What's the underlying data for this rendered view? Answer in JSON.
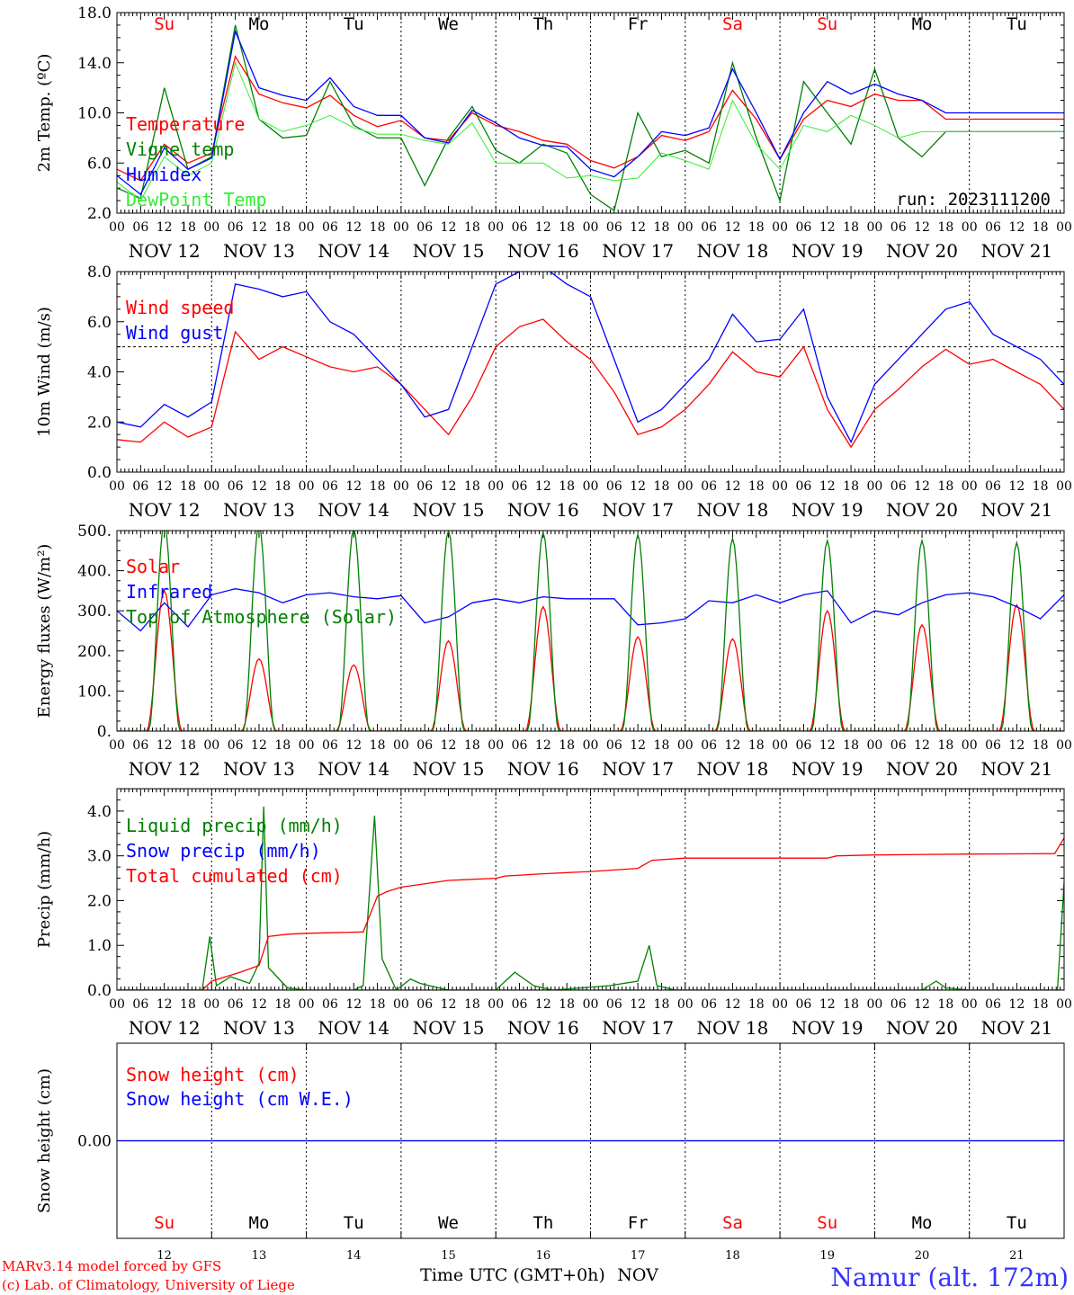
{
  "colors": {
    "red": "#ff0000",
    "green": "#008000",
    "blue": "#0000ff",
    "lightgreen": "#33ee33",
    "purple": "#800080",
    "location_blue": "#3333ff"
  },
  "x_axis": {
    "hour_labels": [
      "00",
      "06",
      "12",
      "18"
    ],
    "final_label": "00",
    "date_labels": [
      "NOV 12",
      "NOV 13",
      "NOV 14",
      "NOV 15",
      "NOV 16",
      "NOV 17",
      "NOV 18",
      "NOV 19",
      "NOV 20",
      "NOV 21"
    ],
    "weekdays": [
      "Su",
      "Mo",
      "Tu",
      "We",
      "Th",
      "Fr",
      "Sa",
      "Su",
      "Mo",
      "Tu"
    ],
    "weekday_colors": [
      "red",
      "black",
      "black",
      "black",
      "black",
      "black",
      "red",
      "red",
      "black",
      "black"
    ],
    "day_numbers": [
      "12",
      "13",
      "14",
      "15",
      "16",
      "17",
      "18",
      "19",
      "20",
      "21"
    ],
    "axis_title": "Time UTC (GMT+0h)",
    "month": "NOV"
  },
  "footer": {
    "credit_1": "MARv3.14 model forced by GFS",
    "credit_2": "(c) Lab. of Climatology, University of Liege",
    "location": "Namur (alt. 172m)"
  },
  "chart_data": [
    {
      "type": "line",
      "ylabel": "2m Temp. (ºC)",
      "ylim": [
        2,
        18
      ],
      "yticks": [
        "2.0",
        "6.0",
        "10.0",
        "14.0",
        "18.0"
      ],
      "ytick_values": [
        2,
        6,
        10,
        14,
        18
      ],
      "annotation": "run: 2023111200",
      "x_days": [
        0,
        10
      ],
      "series": [
        {
          "name": "Temperature",
          "color": "red",
          "x": [
            0,
            0.25,
            0.5,
            0.75,
            1,
            1.25,
            1.5,
            1.75,
            2,
            2.25,
            2.5,
            2.75,
            3,
            3.25,
            3.5,
            3.75,
            4,
            4.25,
            4.5,
            4.75,
            5,
            5.25,
            5.5,
            5.75,
            6,
            6.25,
            6.5,
            6.75,
            7,
            7.25,
            7.5,
            7.75,
            8,
            8.25,
            8.5,
            8.75,
            9,
            9.25,
            9.5,
            9.75,
            10
          ],
          "y": [
            5.5,
            4.6,
            7.5,
            6.0,
            6.8,
            14.5,
            11.5,
            10.8,
            10.4,
            11.4,
            9.8,
            8.9,
            9.4,
            8.0,
            7.8,
            10.0,
            9.0,
            8.5,
            7.8,
            7.5,
            6.2,
            5.6,
            6.5,
            8.2,
            7.8,
            8.5,
            11.8,
            9.5,
            6.3,
            9.5,
            11.0,
            10.5,
            11.5,
            11.0,
            11.0,
            9.5,
            9.5,
            9.5,
            9.5,
            9.5,
            9.5
          ]
        },
        {
          "name": "Vigne temp",
          "color": "green",
          "x": [
            0,
            0.25,
            0.5,
            0.75,
            1,
            1.25,
            1.5,
            1.75,
            2,
            2.25,
            2.5,
            2.75,
            3,
            3.25,
            3.5,
            3.75,
            4,
            4.25,
            4.5,
            4.75,
            5,
            5.25,
            5.5,
            5.75,
            6,
            6.25,
            6.5,
            6.75,
            7,
            7.25,
            7.5,
            7.75,
            8,
            8.25,
            8.5,
            8.75,
            9,
            9.25,
            9.5,
            9.75,
            10
          ],
          "y": [
            4.0,
            3.2,
            12.0,
            5.5,
            6.5,
            17.0,
            9.5,
            8.0,
            8.2,
            12.5,
            9.0,
            8.0,
            8.0,
            4.2,
            8.0,
            10.5,
            7.0,
            6.0,
            7.5,
            6.8,
            3.5,
            2.2,
            10.0,
            6.5,
            7.0,
            6.0,
            14.0,
            8.0,
            3.0,
            12.5,
            10.0,
            7.5,
            13.5,
            8.0,
            6.5,
            8.5,
            8.5,
            8.5,
            8.5,
            8.5,
            8.5
          ]
        },
        {
          "name": "Humidex",
          "color": "blue",
          "x": [
            0,
            0.25,
            0.5,
            0.75,
            1,
            1.25,
            1.5,
            1.75,
            2,
            2.25,
            2.5,
            2.75,
            3,
            3.25,
            3.5,
            3.75,
            4,
            4.25,
            4.5,
            4.75,
            5,
            5.25,
            5.5,
            5.75,
            6,
            6.25,
            6.5,
            6.75,
            7,
            7.25,
            7.5,
            7.75,
            8,
            8.25,
            8.5,
            8.75,
            9,
            9.25,
            9.5,
            9.75,
            10
          ],
          "y": [
            5.0,
            3.5,
            7.2,
            5.5,
            6.4,
            16.5,
            12.0,
            11.4,
            11.0,
            12.8,
            10.5,
            9.8,
            9.8,
            8.0,
            7.6,
            10.2,
            9.2,
            8.0,
            7.4,
            7.3,
            5.5,
            4.9,
            6.5,
            8.5,
            8.2,
            8.8,
            13.5,
            10.0,
            6.3,
            10.0,
            12.5,
            11.5,
            12.3,
            11.5,
            11.0,
            10.0,
            10.0,
            10.0,
            10.0,
            10.0,
            10.0
          ]
        },
        {
          "name": "DewPoint Temp",
          "color": "lightgreen",
          "x": [
            0,
            0.25,
            0.5,
            0.75,
            1,
            1.25,
            1.5,
            1.75,
            2,
            2.25,
            2.5,
            2.75,
            3,
            3.25,
            3.5,
            3.75,
            4,
            4.25,
            4.5,
            4.75,
            5,
            5.25,
            5.5,
            5.75,
            6,
            6.25,
            6.5,
            6.75,
            7,
            7.25,
            7.5,
            7.75,
            8,
            8.25,
            8.5,
            8.75,
            9,
            9.25,
            9.5,
            9.75,
            10
          ],
          "y": [
            4.5,
            3.0,
            6.5,
            5.0,
            6.0,
            14.0,
            9.5,
            8.5,
            9.0,
            9.8,
            8.8,
            8.3,
            8.3,
            7.8,
            7.5,
            9.2,
            6.0,
            6.0,
            6.0,
            4.8,
            5.0,
            4.6,
            4.8,
            6.8,
            6.2,
            5.5,
            11.0,
            7.5,
            5.5,
            9.0,
            8.5,
            9.8,
            9.0,
            8.0,
            8.5,
            8.5,
            8.5,
            8.5,
            8.5,
            8.5,
            8.5
          ]
        }
      ]
    },
    {
      "type": "line",
      "ylabel": "10m Wind (m/s)",
      "ylim": [
        0,
        8
      ],
      "yticks": [
        "0.0",
        "2.0",
        "4.0",
        "6.0",
        "8.0"
      ],
      "ytick_values": [
        0,
        2,
        4,
        6,
        8
      ],
      "reference_line": 5,
      "x_days": [
        0,
        10
      ],
      "series": [
        {
          "name": "Wind speed",
          "color": "red",
          "x": [
            0,
            0.25,
            0.5,
            0.75,
            1,
            1.25,
            1.5,
            1.75,
            2,
            2.25,
            2.5,
            2.75,
            3,
            3.25,
            3.5,
            3.75,
            4,
            4.25,
            4.5,
            4.75,
            5,
            5.25,
            5.5,
            5.75,
            6,
            6.25,
            6.5,
            6.75,
            7,
            7.25,
            7.5,
            7.75,
            8,
            8.25,
            8.5,
            8.75,
            9,
            9.25,
            9.5,
            9.75,
            10
          ],
          "y": [
            1.3,
            1.2,
            2.0,
            1.4,
            1.8,
            5.6,
            4.5,
            5.0,
            4.6,
            4.2,
            4.0,
            4.2,
            3.5,
            2.5,
            1.5,
            3.0,
            5.0,
            5.8,
            6.1,
            5.2,
            4.5,
            3.2,
            1.5,
            1.8,
            2.5,
            3.5,
            4.8,
            4.0,
            3.8,
            5.0,
            2.5,
            1.0,
            2.5,
            3.3,
            4.2,
            4.9,
            4.3,
            4.5,
            4.0,
            3.5,
            2.5
          ]
        },
        {
          "name": "Wind gust",
          "color": "blue",
          "x": [
            0,
            0.25,
            0.5,
            0.75,
            1,
            1.25,
            1.5,
            1.75,
            2,
            2.25,
            2.5,
            2.75,
            3,
            3.25,
            3.5,
            3.75,
            4,
            4.25,
            4.5,
            4.75,
            5,
            5.25,
            5.5,
            5.75,
            6,
            6.25,
            6.5,
            6.75,
            7,
            7.25,
            7.5,
            7.75,
            8,
            8.25,
            8.5,
            8.75,
            9,
            9.25,
            9.5,
            9.75,
            10
          ],
          "y": [
            2.0,
            1.8,
            2.7,
            2.2,
            2.8,
            7.5,
            7.3,
            7.0,
            7.2,
            6.0,
            5.5,
            4.5,
            3.5,
            2.2,
            2.5,
            5.0,
            7.5,
            8.0,
            8.2,
            7.5,
            7.0,
            4.5,
            2.0,
            2.5,
            3.5,
            4.5,
            6.3,
            5.2,
            5.3,
            6.5,
            3.0,
            1.2,
            3.5,
            4.5,
            5.5,
            6.5,
            6.8,
            5.5,
            5.0,
            4.5,
            3.5
          ]
        }
      ]
    },
    {
      "type": "line",
      "ylabel": "Energy fluxes (W/m²)",
      "ylim": [
        0,
        500
      ],
      "yticks": [
        "0.",
        "100.",
        "200.",
        "300.",
        "400.",
        "500."
      ],
      "ytick_values": [
        0,
        100,
        200,
        300,
        400,
        500
      ],
      "x_days": [
        0,
        10
      ],
      "series": [
        {
          "name": "Solar",
          "color": "red",
          "diurnal": true,
          "sunrise_h": 7.5,
          "sunset_h": 16.5,
          "daily_peaks": [
            350,
            180,
            165,
            225,
            310,
            235,
            230,
            300,
            265,
            315
          ]
        },
        {
          "name": "Infrared",
          "color": "blue",
          "x": [
            0,
            0.25,
            0.5,
            0.75,
            1,
            1.25,
            1.5,
            1.75,
            2,
            2.25,
            2.5,
            2.75,
            3,
            3.25,
            3.5,
            3.75,
            4,
            4.25,
            4.5,
            4.75,
            5,
            5.25,
            5.5,
            5.75,
            6,
            6.25,
            6.5,
            6.75,
            7,
            7.25,
            7.5,
            7.75,
            8,
            8.25,
            8.5,
            8.75,
            9,
            9.25,
            9.5,
            9.75,
            10
          ],
          "y": [
            300,
            250,
            320,
            260,
            340,
            355,
            345,
            320,
            340,
            345,
            335,
            330,
            338,
            270,
            285,
            320,
            330,
            320,
            335,
            330,
            330,
            330,
            265,
            270,
            280,
            325,
            320,
            340,
            320,
            340,
            350,
            270,
            300,
            290,
            320,
            340,
            345,
            335,
            310,
            280,
            340
          ]
        },
        {
          "name": "Top of Atmosphere (Solar)",
          "color": "green",
          "diurnal": true,
          "sunrise_h": 8,
          "sunset_h": 16,
          "daily_peaks": [
            520,
            515,
            505,
            500,
            495,
            490,
            480,
            475,
            475,
            470
          ]
        }
      ]
    },
    {
      "type": "line",
      "ylabel": "Precip (mm/h)",
      "ylim": [
        0,
        4.5
      ],
      "yticks": [
        "0.0",
        "1.0",
        "2.0",
        "3.0",
        "4.0"
      ],
      "ytick_values": [
        0,
        1,
        2,
        3,
        4
      ],
      "x_days": [
        0,
        10
      ],
      "series": [
        {
          "name": "Liquid precip (mm/h)",
          "color": "green",
          "x": [
            0,
            0.9,
            0.98,
            1.05,
            1.2,
            1.4,
            1.5,
            1.55,
            1.6,
            1.8,
            2.0,
            2.5,
            2.6,
            2.72,
            2.8,
            2.95,
            3.1,
            3.2,
            3.5,
            4.0,
            4.2,
            4.4,
            4.6,
            5.2,
            5.5,
            5.62,
            5.7,
            5.9,
            8.0,
            8.5,
            8.65,
            8.75,
            9.0,
            9.5,
            9.93,
            10
          ],
          "y": [
            0,
            0,
            1.2,
            0.1,
            0.3,
            0.15,
            0.6,
            4.1,
            0.5,
            0.05,
            0,
            0,
            0.1,
            3.9,
            0.7,
            0,
            0.25,
            0.15,
            0,
            0,
            0.4,
            0.1,
            0,
            0.1,
            0.2,
            1.0,
            0.1,
            0,
            0,
            0,
            0.2,
            0.05,
            0,
            0,
            0,
            2.4
          ]
        },
        {
          "name": "Snow precip (mm/h)",
          "color": "blue",
          "x": [
            0,
            10
          ],
          "y": [
            0,
            0
          ]
        },
        {
          "name": "Total cumulated (cm)",
          "color": "red",
          "x": [
            0,
            0.9,
            1.0,
            1.3,
            1.5,
            1.6,
            1.8,
            2.0,
            2.6,
            2.75,
            2.85,
            3.0,
            3.5,
            4.0,
            4.1,
            4.5,
            5.0,
            5.5,
            5.65,
            6.0,
            7.0,
            7.5,
            7.6,
            8.0,
            9.0,
            9.9,
            10
          ],
          "y": [
            0,
            0,
            0.2,
            0.4,
            0.55,
            1.2,
            1.25,
            1.27,
            1.3,
            2.1,
            2.2,
            2.3,
            2.45,
            2.5,
            2.55,
            2.6,
            2.65,
            2.72,
            2.9,
            2.95,
            2.95,
            2.95,
            3.0,
            3.02,
            3.04,
            3.05,
            3.4
          ]
        }
      ]
    },
    {
      "type": "line",
      "ylabel": "Snow height (cm)",
      "ylim": [
        -1,
        1
      ],
      "yticks": [
        "0.00"
      ],
      "ytick_values": [
        0
      ],
      "x_days": [
        0,
        10
      ],
      "series": [
        {
          "name": "Snow height (cm)",
          "color": "red",
          "x": [
            0,
            10
          ],
          "y": [
            0,
            0
          ]
        },
        {
          "name": "Snow height (cm W.E.)",
          "color": "blue",
          "x": [
            0,
            10
          ],
          "y": [
            0,
            0
          ]
        }
      ]
    }
  ]
}
